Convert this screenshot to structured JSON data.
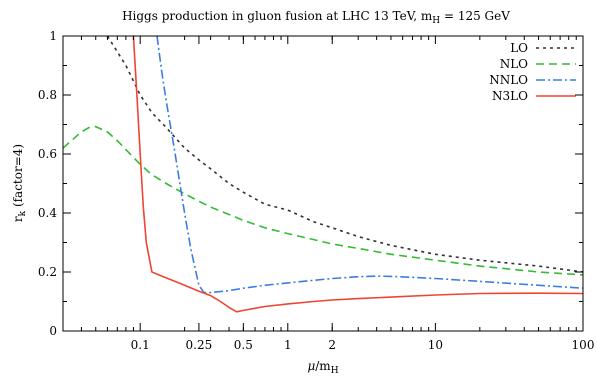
{
  "chart_data": {
    "type": "line",
    "title": "Higgs production in gluon fusion at LHC 13 TeV, m",
    "title_sub": "H",
    "title_tail": " = 125 GeV",
    "ylabel": "r",
    "ylabel_sub": "k",
    "ylabel_tail": "  (factor=4)",
    "xlabel_mu": "μ",
    "xlabel_slash": "/m",
    "xlabel_sub": "H",
    "x_scale": "log",
    "xlim": [
      0.03,
      100
    ],
    "ylim": [
      0,
      1
    ],
    "xticks": [
      0.1,
      0.25,
      0.5,
      1,
      2,
      10,
      100
    ],
    "xtick_labels": [
      "0.1",
      "0.25",
      "0.5",
      "1",
      "2",
      "10",
      "100"
    ],
    "yticks": [
      0,
      0.2,
      0.4,
      0.6,
      0.8,
      1
    ],
    "ytick_labels": [
      "0",
      "0.2",
      "0.4",
      "0.6",
      "0.8",
      "1"
    ],
    "legend_position": "top-right",
    "grid": false,
    "series": [
      {
        "name": "LO",
        "color": "#333333",
        "dash": "3,4",
        "x": [
          0.06,
          0.08,
          0.1,
          0.12,
          0.15,
          0.2,
          0.25,
          0.3,
          0.4,
          0.5,
          0.7,
          1,
          1.5,
          2,
          3,
          5,
          10,
          20,
          50,
          100
        ],
        "y": [
          1.0,
          0.9,
          0.8,
          0.74,
          0.69,
          0.62,
          0.58,
          0.55,
          0.5,
          0.47,
          0.43,
          0.41,
          0.37,
          0.35,
          0.32,
          0.29,
          0.26,
          0.24,
          0.22,
          0.2
        ]
      },
      {
        "name": "NLO",
        "color": "#33bb33",
        "dash": "8,5",
        "x": [
          0.03,
          0.035,
          0.04,
          0.045,
          0.05,
          0.06,
          0.07,
          0.08,
          0.1,
          0.12,
          0.15,
          0.2,
          0.25,
          0.3,
          0.4,
          0.5,
          0.7,
          1,
          1.5,
          2,
          3,
          5,
          10,
          20,
          50,
          100
        ],
        "y": [
          0.62,
          0.65,
          0.675,
          0.69,
          0.693,
          0.675,
          0.645,
          0.615,
          0.565,
          0.53,
          0.5,
          0.465,
          0.44,
          0.42,
          0.395,
          0.375,
          0.35,
          0.33,
          0.31,
          0.295,
          0.28,
          0.26,
          0.24,
          0.22,
          0.2,
          0.19
        ]
      },
      {
        "name": "NNLO",
        "color": "#3a7ee0",
        "dash": "9,3,2,3",
        "x": [
          0.13,
          0.14,
          0.15,
          0.17,
          0.2,
          0.22,
          0.25,
          0.27,
          0.3,
          0.4,
          0.5,
          0.7,
          1,
          1.5,
          2,
          3,
          4,
          5,
          7,
          10,
          20,
          50,
          100
        ],
        "y": [
          1.0,
          0.88,
          0.78,
          0.62,
          0.4,
          0.28,
          0.155,
          0.13,
          0.13,
          0.137,
          0.145,
          0.155,
          0.163,
          0.172,
          0.178,
          0.184,
          0.186,
          0.185,
          0.182,
          0.178,
          0.168,
          0.155,
          0.145
        ]
      },
      {
        "name": "N3LO",
        "color": "#ee4433",
        "dash": "",
        "x": [
          0.09,
          0.095,
          0.1,
          0.105,
          0.11,
          0.12,
          0.15,
          0.2,
          0.25,
          0.3,
          0.35,
          0.4,
          0.45,
          0.5,
          0.7,
          1,
          1.5,
          2,
          3,
          5,
          10,
          20,
          50,
          100
        ],
        "y": [
          1.0,
          0.8,
          0.6,
          0.42,
          0.3,
          0.2,
          0.18,
          0.155,
          0.135,
          0.12,
          0.1,
          0.08,
          0.065,
          0.07,
          0.083,
          0.092,
          0.1,
          0.105,
          0.11,
          0.115,
          0.122,
          0.127,
          0.128,
          0.127
        ]
      }
    ]
  }
}
